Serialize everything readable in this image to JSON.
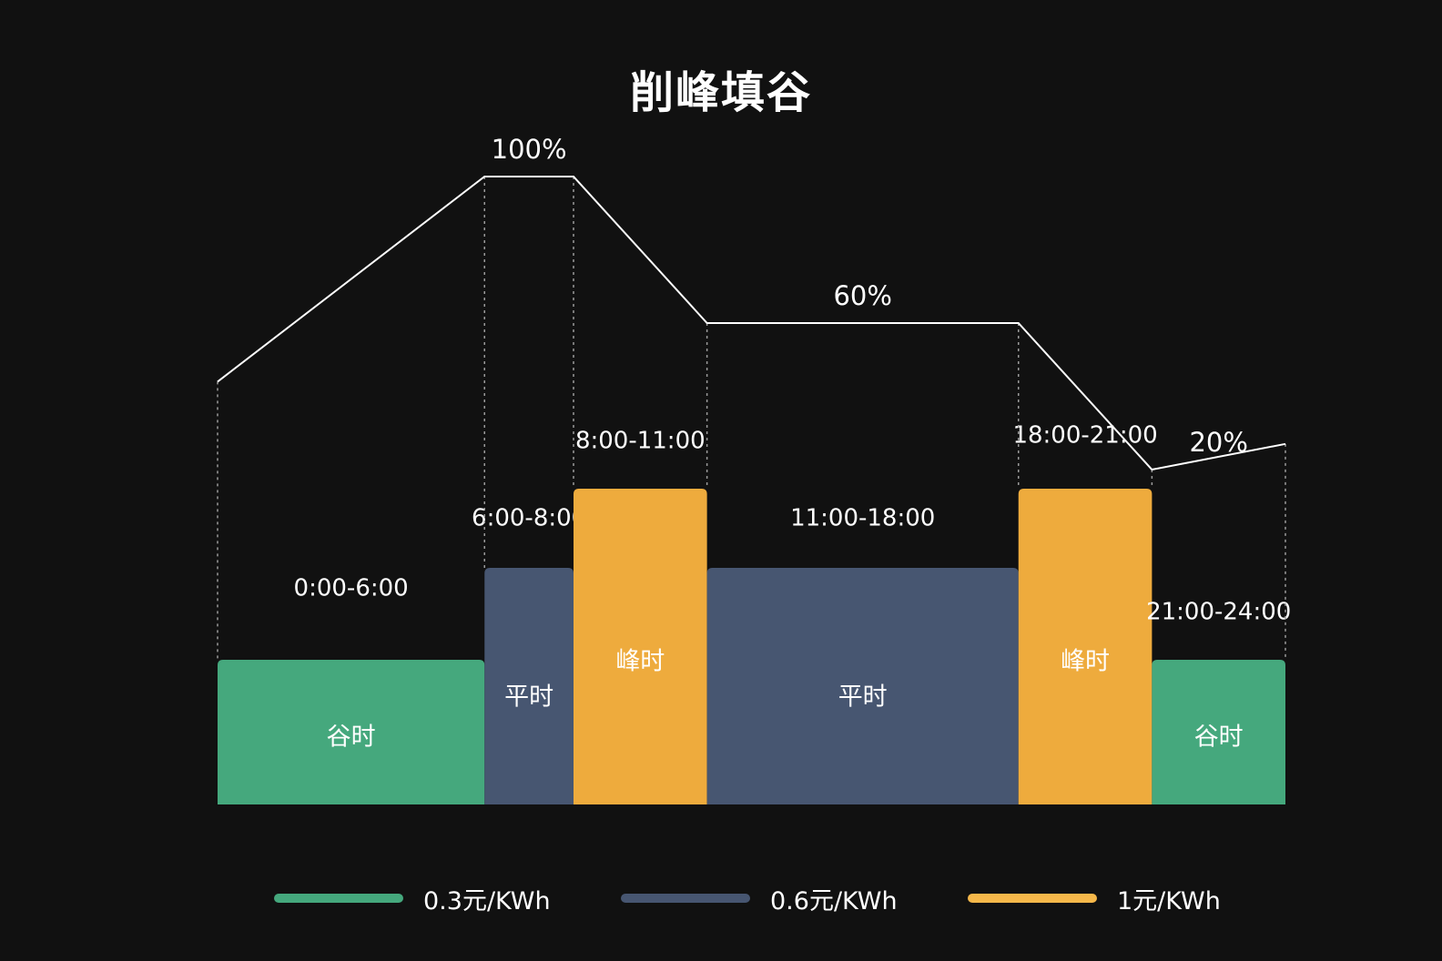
{
  "chart_data": {
    "type": "bar",
    "title": "削峰填谷",
    "xlabel": "",
    "ylabel": "",
    "categories": [
      "0:00-6:00",
      "6:00-8:00",
      "8:00-11:00",
      "11:00-18:00",
      "18:00-21:00",
      "21:00-24:00"
    ],
    "bars": [
      {
        "range": "0:00-6:00",
        "start_hour": 0,
        "end_hour": 6,
        "label": "谷时",
        "tier": "谷时",
        "price_level": 1
      },
      {
        "range": "6:00-8:00",
        "start_hour": 6,
        "end_hour": 8,
        "label": "平时",
        "tier": "平时",
        "price_level": 2
      },
      {
        "range": "8:00-11:00",
        "start_hour": 8,
        "end_hour": 11,
        "label": "峰时",
        "tier": "峰时",
        "price_level": 3
      },
      {
        "range": "11:00-18:00",
        "start_hour": 11,
        "end_hour": 18,
        "label": "平时",
        "tier": "平时",
        "price_level": 2
      },
      {
        "range": "18:00-21:00",
        "start_hour": 18,
        "end_hour": 21,
        "label": "峰时",
        "tier": "峰时",
        "price_level": 3
      },
      {
        "range": "21:00-24:00",
        "start_hour": 21,
        "end_hour": 24,
        "label": "谷时",
        "tier": "谷时",
        "price_level": 1
      }
    ],
    "line": {
      "points": [
        [
          0,
          44
        ],
        [
          6,
          100
        ],
        [
          8,
          100
        ],
        [
          11,
          60
        ],
        [
          18,
          60
        ],
        [
          21,
          20
        ],
        [
          24,
          27
        ]
      ],
      "labels": [
        {
          "x": 7,
          "y": 100,
          "text": "100%"
        },
        {
          "x": 14.5,
          "y": 60,
          "text": "60%"
        },
        {
          "x": 22.5,
          "y": 20,
          "text": "20%"
        }
      ]
    },
    "legend": [
      {
        "label": "0.3元/KWh",
        "tier": "谷时"
      },
      {
        "label": "0.6元/KWh",
        "tier": "平时"
      },
      {
        "label": "1元/KWh",
        "tier": "峰时"
      }
    ],
    "colors": {
      "谷时": "#45a87d",
      "平时": "#475671",
      "峰时": "#eeab3d",
      "legend_峰时": "#f6b84a",
      "line": "#ffffff",
      "background": "#111111"
    },
    "grid": false,
    "legend_position": "bottom"
  }
}
